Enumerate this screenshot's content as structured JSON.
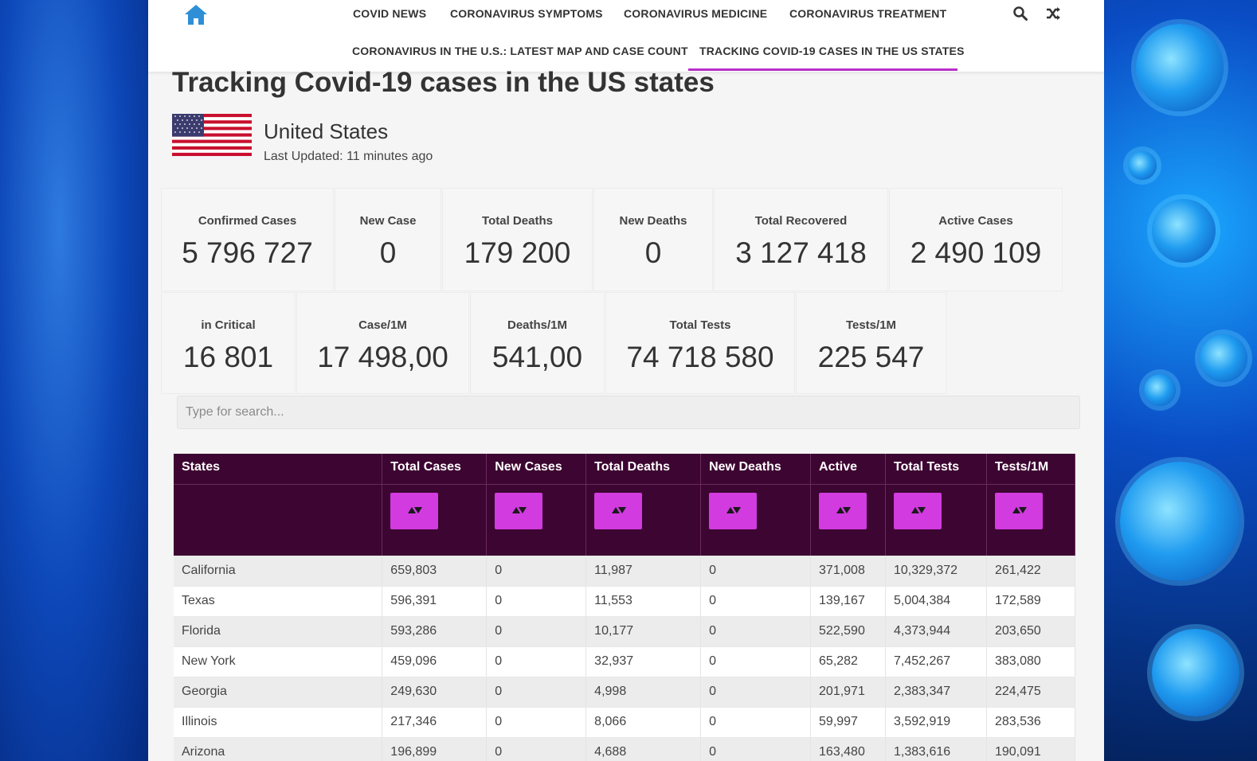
{
  "nav": {
    "row1": [
      "COVID NEWS",
      "CORONAVIRUS SYMPTOMS",
      "CORONAVIRUS MEDICINE",
      "CORONAVIRUS TREATMENT"
    ],
    "row2": [
      "CORONAVIRUS IN THE U.S.: LATEST MAP AND CASE COUNT",
      "TRACKING COVID-19 CASES IN THE US STATES"
    ],
    "active": "TRACKING COVID-19 CASES IN THE US STATES"
  },
  "colors": {
    "accent": "#b92fc9",
    "table_header": "#3d0531",
    "sort_button": "#d13be0"
  },
  "page": {
    "title": "Tracking Covid-19 cases in the US states",
    "country": "United States",
    "last_updated": "Last Updated: 11 minutes ago"
  },
  "stats_row1": [
    {
      "label": "Confirmed Cases",
      "value": "5 796 727"
    },
    {
      "label": "New Case",
      "value": "0"
    },
    {
      "label": "Total Deaths",
      "value": "179 200"
    },
    {
      "label": "New Deaths",
      "value": "0"
    },
    {
      "label": "Total Recovered",
      "value": "3 127 418"
    },
    {
      "label": "Active Cases",
      "value": "2 490 109"
    }
  ],
  "stats_row2": [
    {
      "label": "in Critical",
      "value": "16 801"
    },
    {
      "label": "Case/1M",
      "value": "17 498,00"
    },
    {
      "label": "Deaths/1M",
      "value": "541,00"
    },
    {
      "label": "Total Tests",
      "value": "74 718 580"
    },
    {
      "label": "Tests/1M",
      "value": "225 547"
    }
  ],
  "search": {
    "placeholder": "Type for search..."
  },
  "table": {
    "headers": [
      "States",
      "Total Cases",
      "New Cases",
      "Total Deaths",
      "New Deaths",
      "Active",
      "Total Tests",
      "Tests/1M"
    ],
    "rows": [
      [
        "California",
        "659,803",
        "0",
        "11,987",
        "0",
        "371,008",
        "10,329,372",
        "261,422"
      ],
      [
        "Texas",
        "596,391",
        "0",
        "11,553",
        "0",
        "139,167",
        "5,004,384",
        "172,589"
      ],
      [
        "Florida",
        "593,286",
        "0",
        "10,177",
        "0",
        "522,590",
        "4,373,944",
        "203,650"
      ],
      [
        "New York",
        "459,096",
        "0",
        "32,937",
        "0",
        "65,282",
        "7,452,267",
        "383,080"
      ],
      [
        "Georgia",
        "249,630",
        "0",
        "4,998",
        "0",
        "201,971",
        "2,383,347",
        "224,475"
      ],
      [
        "Illinois",
        "217,346",
        "0",
        "8,066",
        "0",
        "59,997",
        "3,592,919",
        "283,536"
      ],
      [
        "Arizona",
        "196,899",
        "0",
        "4,688",
        "0",
        "163,480",
        "1,383,616",
        "190,091"
      ]
    ]
  }
}
